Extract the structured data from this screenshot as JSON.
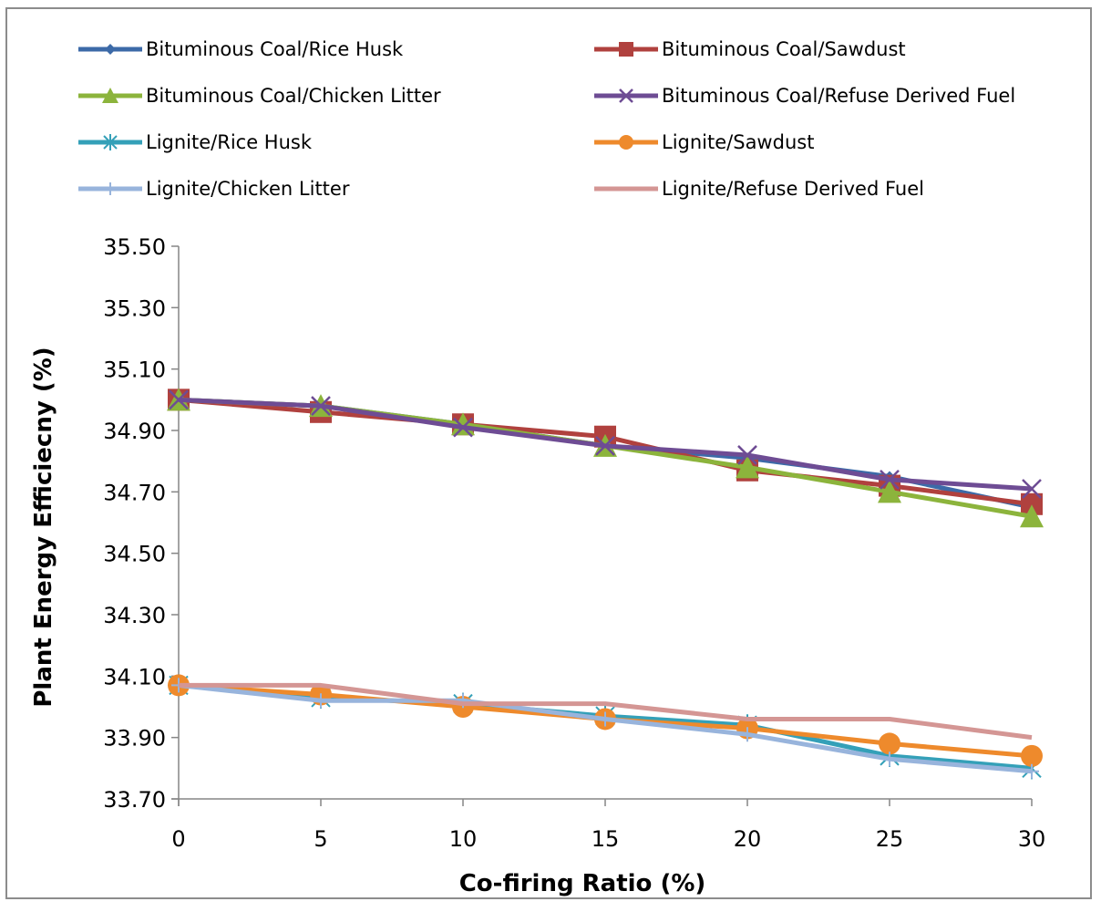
{
  "chart_data": {
    "type": "line",
    "title": "",
    "xlabel": "Co-firing Ratio (%)",
    "ylabel": "Plant Energy Efficiecny (%)",
    "x": [
      0,
      5,
      10,
      15,
      20,
      25,
      30
    ],
    "x_tick_labels": [
      "0",
      "5",
      "10",
      "15",
      "20",
      "25",
      "30"
    ],
    "xlim": [
      0,
      30
    ],
    "ylim": [
      33.7,
      35.5
    ],
    "y_tick_values": [
      33.7,
      33.9,
      34.1,
      34.3,
      34.5,
      34.7,
      34.9,
      35.1,
      35.3,
      35.5
    ],
    "y_tick_labels": [
      "33.70",
      "33.90",
      "34.10",
      "34.30",
      "34.50",
      "34.70",
      "34.90",
      "35.10",
      "35.30",
      "35.50"
    ],
    "grid": false,
    "legend_position": "top",
    "series": [
      {
        "name": "Bituminous Coal/Rice Husk",
        "color": "#3c6aa8",
        "marker": "diamond",
        "values": [
          35.0,
          34.98,
          34.92,
          34.85,
          34.81,
          34.75,
          34.65
        ]
      },
      {
        "name": "Bituminous Coal/Sawdust",
        "color": "#b0413e",
        "marker": "square",
        "values": [
          35.0,
          34.96,
          34.92,
          34.88,
          34.77,
          34.72,
          34.66
        ]
      },
      {
        "name": "Bituminous Coal/Chicken Litter",
        "color": "#8cb43c",
        "marker": "triangle",
        "values": [
          35.0,
          34.98,
          34.92,
          34.85,
          34.78,
          34.7,
          34.62
        ]
      },
      {
        "name": "Bituminous Coal/Refuse Derived Fuel",
        "color": "#6e4c94",
        "marker": "x",
        "values": [
          35.0,
          34.98,
          34.91,
          34.85,
          34.82,
          34.74,
          34.71
        ]
      },
      {
        "name": "Lignite/Rice Husk",
        "color": "#34a0b8",
        "marker": "asterisk",
        "values": [
          34.07,
          34.03,
          34.01,
          33.97,
          33.94,
          33.84,
          33.8
        ]
      },
      {
        "name": "Lignite/Sawdust",
        "color": "#ee8a2c",
        "marker": "circle",
        "values": [
          34.07,
          34.04,
          34.0,
          33.96,
          33.93,
          33.88,
          33.84
        ]
      },
      {
        "name": "Lignite/Chicken Litter",
        "color": "#98b4dc",
        "marker": "plus",
        "values": [
          34.07,
          34.02,
          34.02,
          33.96,
          33.91,
          33.83,
          33.79
        ]
      },
      {
        "name": "Lignite/Refuse Derived Fuel",
        "color": "#d49694",
        "marker": "none",
        "values": [
          34.07,
          34.07,
          34.01,
          34.01,
          33.96,
          33.96,
          33.9
        ]
      }
    ]
  }
}
